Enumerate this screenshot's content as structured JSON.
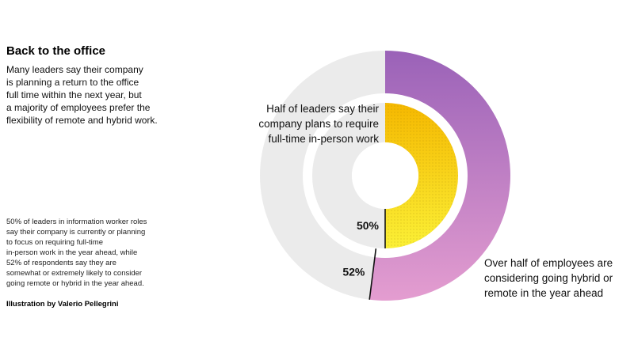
{
  "title": "Back to the office",
  "intro_lines": [
    "Many leaders say their company",
    "is planning a return to the office",
    "full time within the next year, but",
    "a majority of employees prefer the",
    "flexibility of remote and hybrid work."
  ],
  "footnote_lines": [
    "50% of leaders in information worker roles",
    "say their company is currently or planning",
    "to focus on requiring full-time",
    "in-person work in the year ahead, while",
    "52% of respondents say they are",
    "somewhat or extremely likely to consider",
    "going remote or hybrid in the year ahead."
  ],
  "credit": "Illustration by Valerio Pellegrini",
  "chart_data": {
    "type": "pie",
    "title": "Back to the office",
    "series": [
      {
        "name": "Leaders",
        "value": 50,
        "label": "50%",
        "annotation": [
          "Half of leaders say their",
          "company plans to require",
          "full-time in-person work"
        ],
        "color_start": "#f5b800",
        "color_end": "#fbf036",
        "track_color": "#ebebeb"
      },
      {
        "name": "Employees",
        "value": 52,
        "label": "52%",
        "annotation": [
          "Over half of employees are",
          "considering going hybrid or",
          "remote in the year ahead"
        ],
        "color_start": "#9a62b8",
        "color_end": "#e49dd0",
        "track_color": "#ebebeb"
      }
    ]
  }
}
